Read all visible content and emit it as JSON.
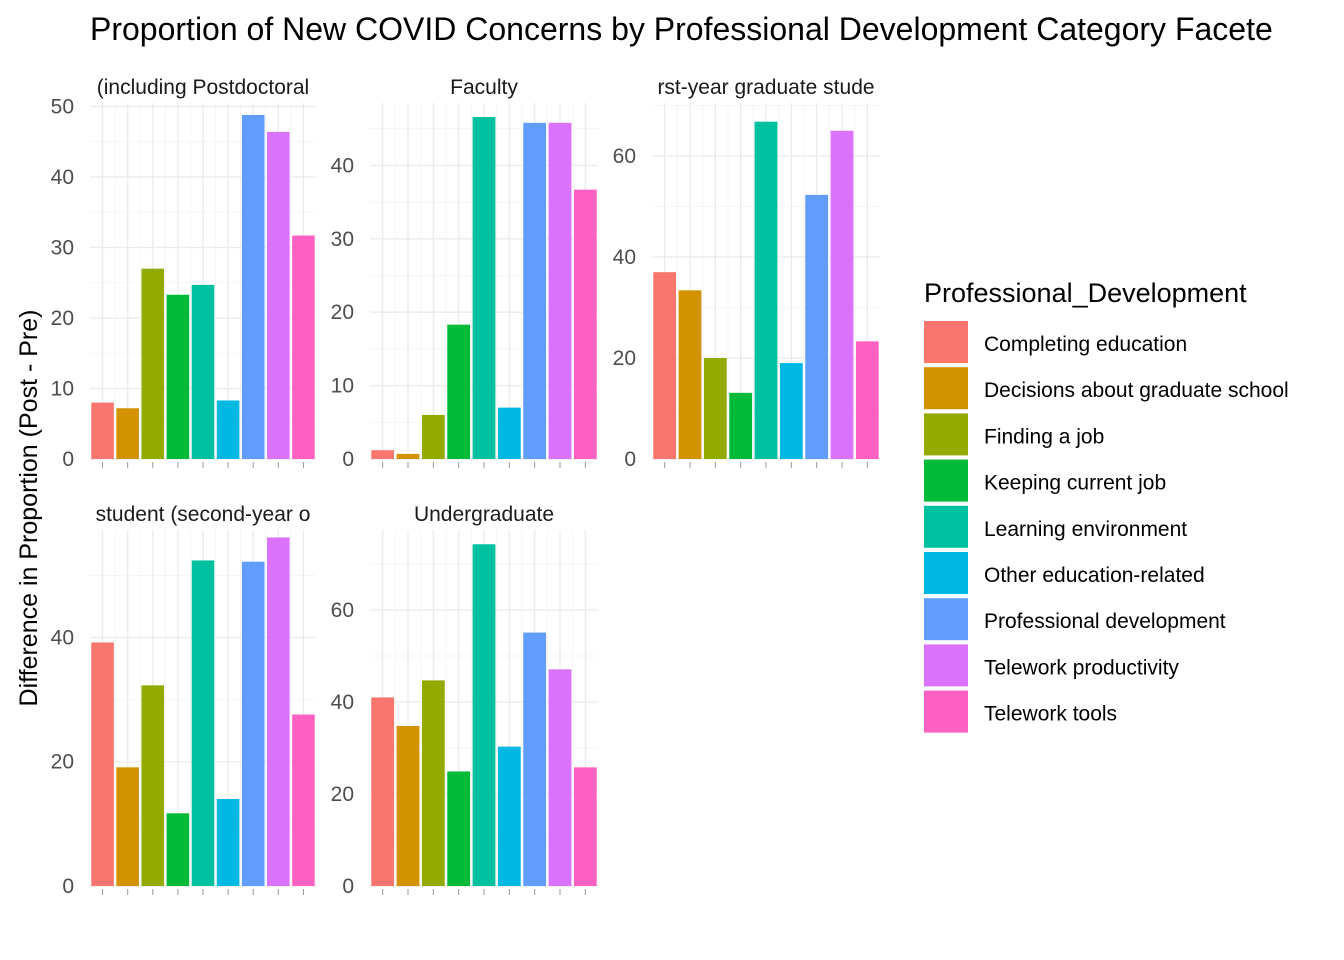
{
  "chart_data": {
    "type": "bar",
    "title": "Proportion of New COVID Concerns by Professional Development Category Facete",
    "ylabel": "Difference in Proportion (Post - Pre)",
    "xlabel": "",
    "legend": {
      "title": "Professional_Development",
      "placement": "right"
    },
    "categories": [
      "Completing education",
      "Decisions about graduate school",
      "Finding a job",
      "Keeping current job",
      "Learning environment",
      "Other education-related",
      "Professional development",
      "Telework productivity",
      "Telework tools"
    ],
    "colors": [
      "#F8766D",
      "#D39200",
      "#93AA00",
      "#00BA38",
      "#00C19F",
      "#00B9E3",
      "#619CFF",
      "#DB72FB",
      "#FF61C3"
    ],
    "grid": true,
    "facets": [
      {
        "strip": "(including Postdoctoral",
        "ylim": [
          0,
          50.5
        ],
        "ticks": [
          0,
          10,
          20,
          30,
          40,
          50
        ],
        "values": [
          8,
          7.2,
          27,
          23.3,
          24.7,
          8.3,
          48.8,
          46.4,
          31.7
        ]
      },
      {
        "strip": "Faculty",
        "ylim": [
          0,
          48.5
        ],
        "ticks": [
          0,
          10,
          20,
          30,
          40
        ],
        "values": [
          1.2,
          0.7,
          6,
          18.3,
          46.6,
          7,
          45.8,
          45.8,
          36.7
        ]
      },
      {
        "strip": "rst-year graduate stude",
        "ylim": [
          0,
          70.5
        ],
        "ticks": [
          0,
          20,
          40,
          60
        ],
        "values": [
          37,
          33.4,
          20,
          13.1,
          66.8,
          19,
          52.3,
          65,
          23.3
        ]
      },
      {
        "strip": "student (second-year o",
        "ylim": [
          0,
          57.3
        ],
        "ticks": [
          0,
          20,
          40
        ],
        "values": [
          39.2,
          19.1,
          32.3,
          11.7,
          52.4,
          14,
          52.2,
          56.1,
          27.6
        ]
      },
      {
        "strip": "Undergraduate",
        "ylim": [
          0,
          77.4
        ],
        "ticks": [
          0,
          20,
          40,
          60
        ],
        "values": [
          41,
          34.8,
          44.7,
          24.9,
          74.3,
          30.3,
          55.1,
          47.1,
          25.8
        ]
      }
    ]
  }
}
